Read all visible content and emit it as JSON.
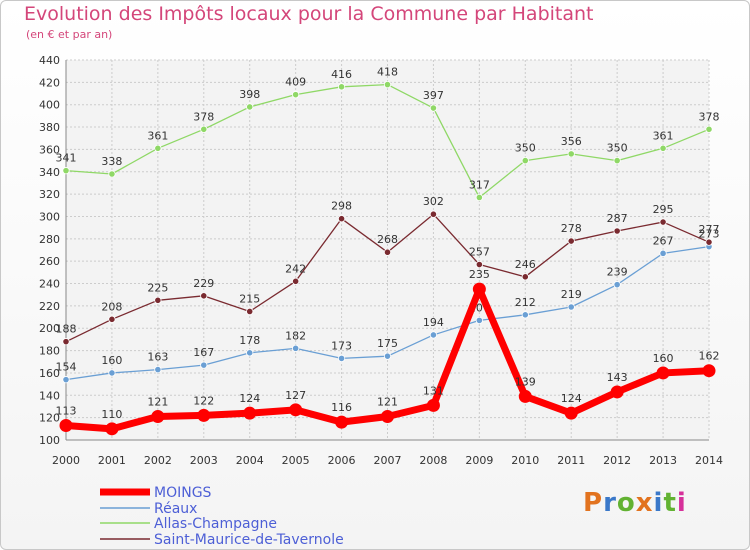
{
  "header": {
    "title": "Evolution des Impôts locaux pour la Commune par Habitant",
    "subtitle": "(en € et par an)"
  },
  "logo": {
    "text": "Proxiti",
    "colors": [
      "#e2731f",
      "#3a78c9",
      "#62b232",
      "#e2731f",
      "#3a78c9",
      "#62b232",
      "#d6309a"
    ]
  },
  "chart_data": {
    "type": "line",
    "title": "Evolution des Impôts locaux pour la Commune par Habitant",
    "subtitle": "(en € et par an)",
    "xlabel": "",
    "ylabel": "",
    "ylim": [
      100,
      440
    ],
    "yticks": [
      100,
      120,
      140,
      160,
      180,
      200,
      220,
      240,
      260,
      280,
      300,
      320,
      340,
      360,
      380,
      400,
      420,
      440
    ],
    "grid": true,
    "legend_position": "bottom-left",
    "x": [
      "2000",
      "2001",
      "2002",
      "2003",
      "2004",
      "2005",
      "2006",
      "2007",
      "2008",
      "2009",
      "2010",
      "2011",
      "2012",
      "2013",
      "2014"
    ],
    "series": [
      {
        "name": "MOINGS",
        "color": "#ff0000",
        "emphasis": true,
        "values": [
          113,
          110,
          121,
          122,
          124,
          127,
          116,
          121,
          131,
          235,
          139,
          124,
          143,
          160,
          162
        ],
        "labels": [
          "113",
          "110",
          "121",
          "122",
          "124",
          "127",
          "116",
          "121",
          "131",
          "235",
          "139",
          "124",
          "143",
          "160",
          "162"
        ]
      },
      {
        "name": "Réaux",
        "color": "#6a9fd4",
        "emphasis": false,
        "values": [
          154,
          160,
          163,
          167,
          178,
          182,
          173,
          175,
          194,
          207,
          212,
          219,
          239,
          267,
          273
        ],
        "labels": [
          "154",
          "160",
          "163",
          "167",
          "178",
          "182",
          "173",
          "175",
          "194",
          "207",
          "212",
          "219",
          "239",
          "267",
          "273"
        ]
      },
      {
        "name": "Allas-Champagne",
        "color": "#8fd866",
        "emphasis": false,
        "values": [
          341,
          338,
          361,
          378,
          398,
          409,
          416,
          418,
          397,
          317,
          350,
          356,
          350,
          361,
          378
        ],
        "labels": [
          "341",
          "338",
          "361",
          "378",
          "398",
          "409",
          "416",
          "418",
          "397",
          "317",
          "350",
          "356",
          "350",
          "361",
          "378"
        ]
      },
      {
        "name": "Saint-Maurice-de-Tavernole",
        "color": "#7a2a30",
        "emphasis": false,
        "values": [
          188,
          208,
          225,
          229,
          215,
          242,
          298,
          268,
          302,
          257,
          246,
          278,
          287,
          295,
          277
        ],
        "labels": [
          "188",
          "208",
          "225",
          "229",
          "215",
          "242",
          "298",
          "268",
          "302",
          "257",
          "246",
          "278",
          "287",
          "295",
          "277"
        ]
      }
    ]
  }
}
